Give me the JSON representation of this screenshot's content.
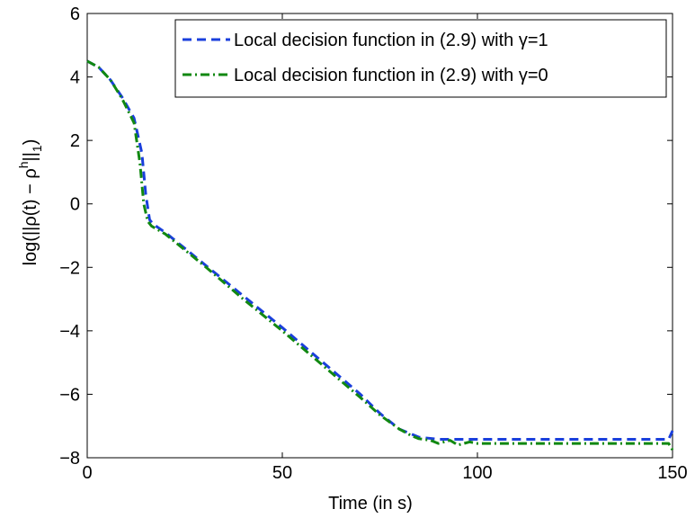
{
  "chart_data": {
    "type": "line",
    "title": "",
    "xlabel": "Time (in s)",
    "ylabel_parts": {
      "main": "log(||ρ(t) − ρ",
      "sup": "h",
      "end": "||",
      "sub": "1",
      "close": ")"
    },
    "xlim": [
      0,
      150
    ],
    "ylim": [
      -8,
      6
    ],
    "xticks": [
      0,
      50,
      100,
      150
    ],
    "yticks": [
      -8,
      -6,
      -4,
      -2,
      0,
      2,
      4,
      6
    ],
    "xtick_labels": [
      "0",
      "50",
      "100",
      "150"
    ],
    "ytick_labels": [
      "−8",
      "−6",
      "−4",
      "−2",
      "0",
      "2",
      "4",
      "6"
    ],
    "grid": false,
    "legend_position": "top-right",
    "series": [
      {
        "name": "Local decision function in (2.9) with γ=1",
        "color": "#1a3fdc",
        "style": "dashed",
        "x": [
          0,
          3,
          6,
          9,
          12,
          14,
          15,
          16,
          17,
          20,
          25,
          30,
          40,
          50,
          60,
          70,
          75,
          80,
          85,
          90,
          100,
          110,
          120,
          130,
          140,
          149,
          150
        ],
        "y": [
          4.5,
          4.3,
          3.9,
          3.35,
          2.7,
          1.6,
          0.3,
          -0.5,
          -0.65,
          -0.9,
          -1.4,
          -1.9,
          -2.9,
          -3.9,
          -4.95,
          -6.0,
          -6.6,
          -7.1,
          -7.35,
          -7.42,
          -7.42,
          -7.42,
          -7.42,
          -7.42,
          -7.42,
          -7.42,
          -7.15
        ]
      },
      {
        "name": "Local decision function in (2.9) with γ=0",
        "color": "#118811",
        "style": "dashdot",
        "x": [
          0,
          3,
          6,
          9,
          12,
          13.5,
          14.5,
          15.5,
          16.5,
          20,
          25,
          30,
          40,
          50,
          60,
          70,
          75,
          80,
          83,
          85,
          88,
          90,
          93,
          95,
          98,
          100,
          105,
          110,
          120,
          130,
          140,
          149,
          150
        ],
        "y": [
          4.5,
          4.3,
          3.9,
          3.3,
          2.55,
          1.3,
          0.0,
          -0.55,
          -0.7,
          -0.95,
          -1.45,
          -1.95,
          -3.0,
          -4.0,
          -5.05,
          -6.1,
          -6.65,
          -7.1,
          -7.3,
          -7.4,
          -7.45,
          -7.55,
          -7.45,
          -7.6,
          -7.5,
          -7.55,
          -7.55,
          -7.55,
          -7.55,
          -7.55,
          -7.55,
          -7.55,
          -7.75
        ]
      }
    ]
  }
}
